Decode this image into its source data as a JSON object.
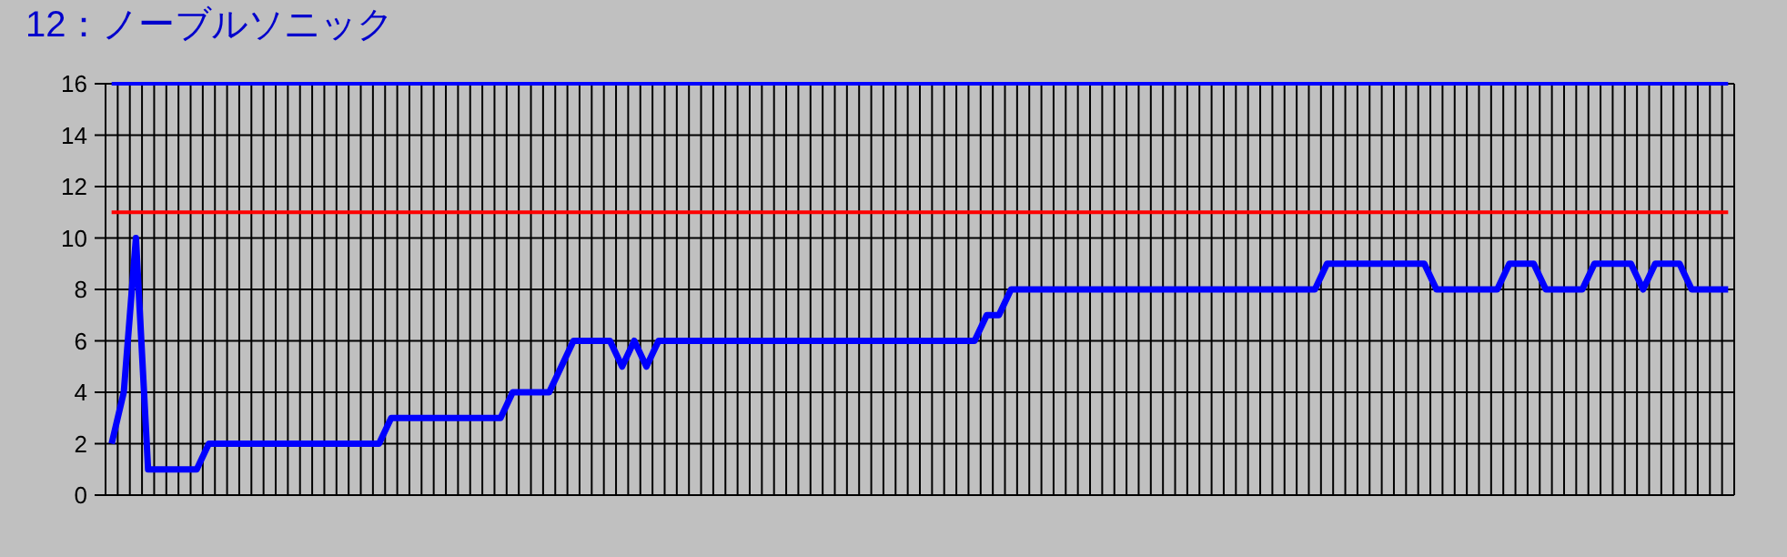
{
  "chart_data": {
    "type": "line",
    "title": "12：ノーブルソニック",
    "categories": [
      null,
      null,
      null,
      null,
      null,
      null,
      null,
      null,
      null,
      null,
      null,
      null,
      null,
      null,
      null,
      null,
      null,
      null,
      null,
      null,
      null,
      null,
      null,
      null,
      null,
      null,
      null,
      null,
      null,
      null,
      null,
      null,
      null,
      null,
      null,
      null,
      null,
      null,
      null,
      null,
      null,
      null,
      null,
      null,
      null,
      null,
      null,
      null,
      null,
      null,
      null,
      null,
      null,
      null,
      null,
      null,
      null,
      null,
      null,
      null,
      null,
      null,
      null,
      null,
      null,
      null,
      null,
      null,
      null,
      null,
      null,
      null,
      null,
      null,
      null,
      null,
      null,
      null,
      null,
      null,
      null,
      null,
      null,
      null,
      null,
      null,
      null,
      null,
      null,
      null,
      null,
      null,
      null,
      null,
      null,
      null,
      null,
      null,
      null,
      null,
      null,
      null,
      null,
      null,
      null,
      null,
      null,
      null,
      null,
      null,
      null,
      null,
      null,
      null,
      null,
      null,
      null,
      null,
      null,
      null,
      null,
      null,
      null,
      null,
      null,
      null,
      null,
      null,
      null,
      null,
      null,
      null,
      null,
      null
    ],
    "series": [
      {
        "color": "#0000ff",
        "values": [
          2,
          4,
          10,
          1,
          1,
          1,
          1,
          1,
          2,
          2,
          2,
          2,
          2,
          2,
          2,
          2,
          2,
          2,
          2,
          2,
          2,
          2,
          2,
          3,
          3,
          3,
          3,
          3,
          3,
          3,
          3,
          3,
          3,
          4,
          4,
          4,
          4,
          5,
          6,
          6,
          6,
          6,
          5,
          6,
          5,
          6,
          6,
          6,
          6,
          6,
          6,
          6,
          6,
          6,
          6,
          6,
          6,
          6,
          6,
          6,
          6,
          6,
          6,
          6,
          6,
          6,
          6,
          6,
          6,
          6,
          6,
          6,
          7,
          7,
          8,
          8,
          8,
          8,
          8,
          8,
          8,
          8,
          8,
          8,
          8,
          8,
          8,
          8,
          8,
          8,
          8,
          8,
          8,
          8,
          8,
          8,
          8,
          8,
          8,
          8,
          9,
          9,
          9,
          9,
          9,
          9,
          9,
          9,
          9,
          8,
          8,
          8,
          8,
          8,
          8,
          9,
          9,
          9,
          8,
          8,
          8,
          8,
          9,
          9,
          9,
          9,
          8,
          9,
          9,
          9,
          8,
          8,
          8,
          8
        ]
      }
    ],
    "ylim": [
      0,
      16
    ],
    "yticks": [
      0,
      2,
      4,
      6,
      8,
      10,
      12,
      14,
      16
    ],
    "grid": true,
    "marker": "none",
    "line_style": "solid",
    "ref_lines": [
      {
        "axis": "y",
        "value": 16,
        "color": "#0000ff"
      },
      {
        "axis": "y",
        "value": 11,
        "color": "#ff0000"
      }
    ]
  }
}
